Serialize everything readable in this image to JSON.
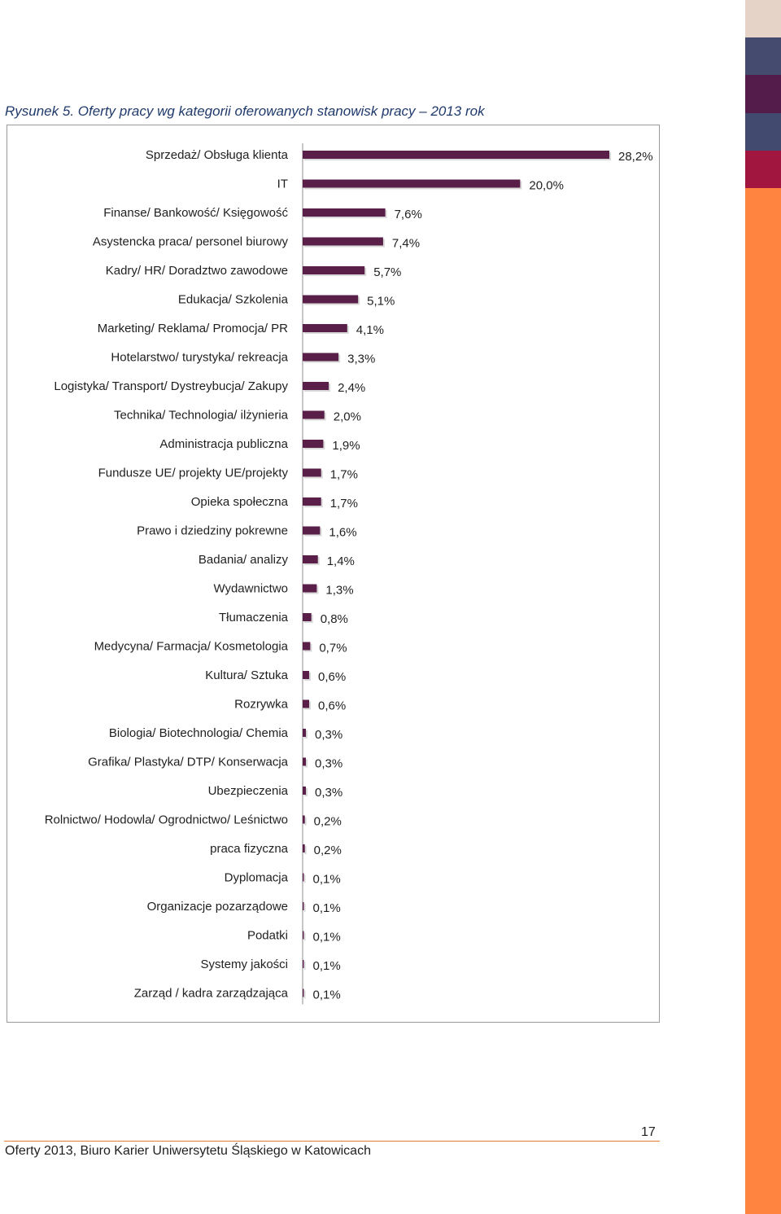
{
  "caption": "Rysunek 5. Oferty pracy wg kategorii oferowanych stanowisk pracy – 2013 rok",
  "footer": "Oferty 2013, Biuro Karier Uniwersytetu Śląskiego w Katowicach",
  "page_number": "17",
  "colors": {
    "bar": "#5a1f48",
    "bar_shadow": "#d9d9d9",
    "strip": [
      "#e4d3c6",
      "#454b6f",
      "#541c4a",
      "#434a70",
      "#a0163f",
      "#ff8440"
    ]
  },
  "chart_data": {
    "type": "bar",
    "orientation": "horizontal",
    "title": "",
    "xlabel": "",
    "ylabel": "",
    "unit": "%",
    "xlim": [
      0,
      28.2
    ],
    "grid": false,
    "legend": "none",
    "categories": [
      "Sprzedaż/ Obsługa klienta",
      "IT",
      "Finanse/ Bankowość/ Księgowość",
      "Asystencka praca/ personel biurowy",
      "Kadry/ HR/ Doradztwo zawodowe",
      "Edukacja/ Szkolenia",
      "Marketing/ Reklama/ Promocja/ PR",
      "Hotelarstwo/ turystyka/ rekreacja",
      "Logistyka/ Transport/ Dystreybucja/ Zakupy",
      "Technika/ Technologia/ ilżynieria",
      "Administracja publiczna",
      "Fundusze UE/ projekty UE/projekty",
      "Opieka społeczna",
      "Prawo i dziedziny pokrewne",
      "Badania/ analizy",
      "Wydawnictwo",
      "Tłumaczenia",
      "Medycyna/ Farmacja/ Kosmetologia",
      "Kultura/ Sztuka",
      "Rozrywka",
      "Biologia/ Biotechnologia/ Chemia",
      "Grafika/ Plastyka/ DTP/ Konserwacja",
      "Ubezpieczenia",
      "Rolnictwo/ Hodowla/ Ogrodnictwo/ Leśnictwo",
      "praca fizyczna",
      "Dyplomacja",
      "Organizacje pozarządowe",
      "Podatki",
      "Systemy jakości",
      "Zarząd  / kadra zarządzająca"
    ],
    "values": [
      28.2,
      20.0,
      7.6,
      7.4,
      5.7,
      5.1,
      4.1,
      3.3,
      2.4,
      2.0,
      1.9,
      1.7,
      1.7,
      1.6,
      1.4,
      1.3,
      0.8,
      0.7,
      0.6,
      0.6,
      0.3,
      0.3,
      0.3,
      0.2,
      0.2,
      0.1,
      0.1,
      0.1,
      0.1,
      0.1
    ],
    "data_labels": [
      "28,2%",
      "20,0%",
      "7,6%",
      "7,4%",
      "5,7%",
      "5,1%",
      "4,1%",
      "3,3%",
      "2,4%",
      "2,0%",
      "1,9%",
      "1,7%",
      "1,7%",
      "1,6%",
      "1,4%",
      "1,3%",
      "0,8%",
      "0,7%",
      "0,6%",
      "0,6%",
      "0,3%",
      "0,3%",
      "0,3%",
      "0,2%",
      "0,2%",
      "0,1%",
      "0,1%",
      "0,1%",
      "0,1%",
      "0,1%"
    ]
  }
}
